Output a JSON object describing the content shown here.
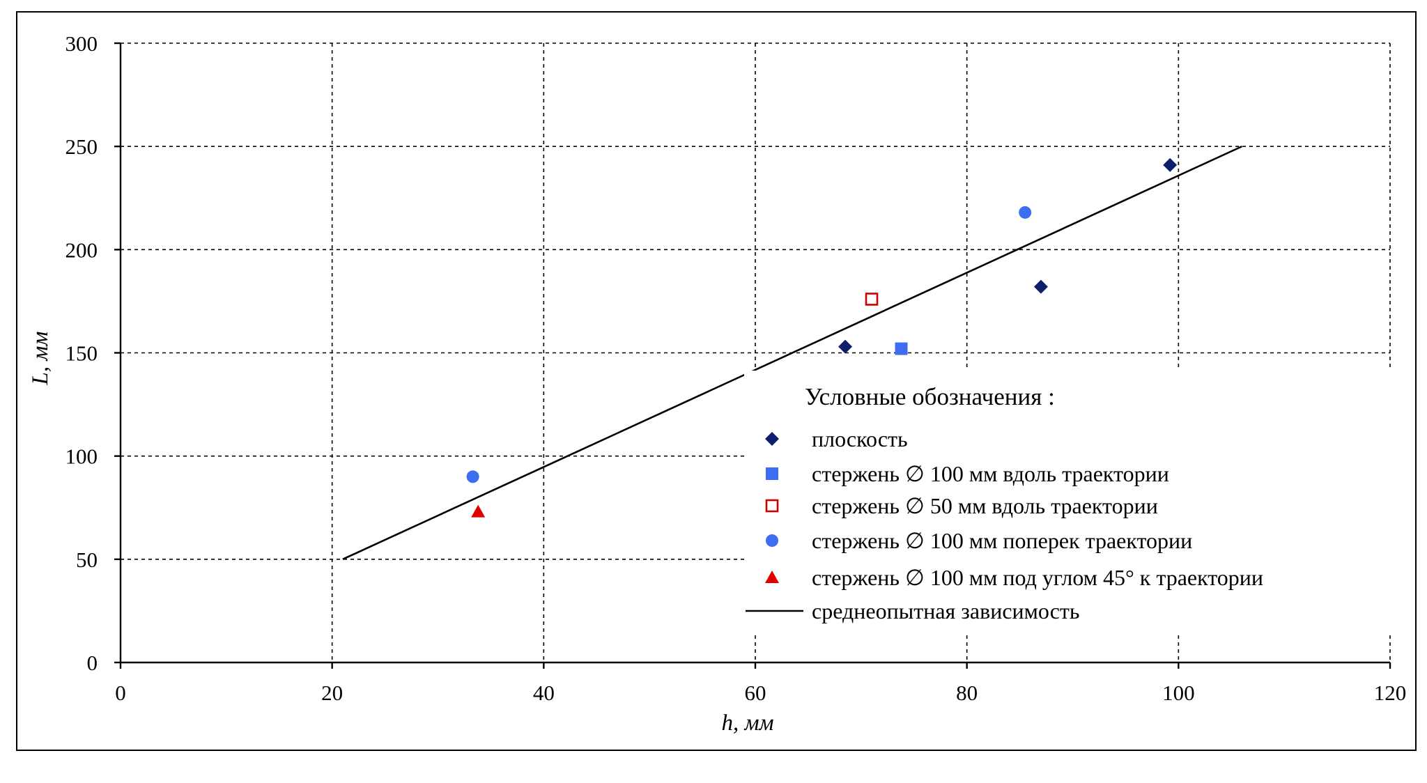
{
  "chart_data": {
    "type": "scatter",
    "xlabel": "h, мм",
    "ylabel": "L, мм",
    "xlim": [
      0,
      120
    ],
    "ylim": [
      0,
      300
    ],
    "x_ticks": [
      0,
      20,
      40,
      60,
      80,
      100,
      120
    ],
    "y_ticks": [
      0,
      50,
      100,
      150,
      200,
      250,
      300
    ],
    "grid": true,
    "legend_title": "Условные обозначения :",
    "legend_position": "bottom-right",
    "series": [
      {
        "name": "плоскость",
        "marker": "diamond",
        "color": "#0d1f6b",
        "points": [
          {
            "x": 68.5,
            "y": 153
          },
          {
            "x": 87,
            "y": 182
          },
          {
            "x": 99.2,
            "y": 241
          }
        ]
      },
      {
        "name": "стержень ∅ 100 мм вдоль траектории",
        "marker": "square",
        "color": "#3d6df0",
        "points": [
          {
            "x": 73.8,
            "y": 152
          }
        ]
      },
      {
        "name": "стержень ∅ 50 мм вдоль траектории",
        "marker": "square-open",
        "color": "#d10000",
        "points": [
          {
            "x": 71,
            "y": 176
          }
        ]
      },
      {
        "name": "стержень ∅ 100 мм поперек траектории",
        "marker": "circle",
        "color": "#3d6df0",
        "points": [
          {
            "x": 33.3,
            "y": 90
          },
          {
            "x": 85.5,
            "y": 218
          }
        ]
      },
      {
        "name": "стержень ∅ 100 мм под углом 45° к траектории",
        "marker": "triangle",
        "color": "#e00000",
        "points": [
          {
            "x": 33.8,
            "y": 73
          }
        ]
      },
      {
        "name": "среднеопытная зависимость",
        "marker": "line",
        "color": "#000000",
        "points": [
          {
            "x": 21,
            "y": 50
          },
          {
            "x": 106,
            "y": 250
          }
        ]
      }
    ]
  }
}
